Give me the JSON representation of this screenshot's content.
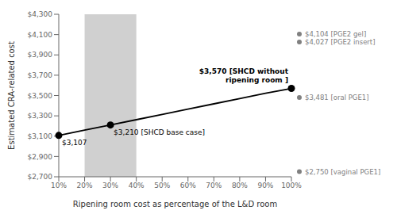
{
  "chart_data": {
    "type": "line",
    "x": [
      10,
      20,
      30,
      40,
      50,
      60,
      70,
      80,
      90,
      100
    ],
    "values": [
      3107,
      3159,
      3210,
      3262,
      3314,
      3366,
      3418,
      3470,
      3522,
      3570
    ],
    "color": "#000000",
    "xlabel": "Ripening room cost as percentage of the L&D room",
    "ylabel": "Estimated CRA-related cost",
    "xlim": [
      10,
      100
    ],
    "ylim": [
      2700,
      4300
    ],
    "xticks": [
      {
        "value": 10,
        "label": "10%"
      },
      {
        "value": 20,
        "label": "20%"
      },
      {
        "value": 30,
        "label": "30%"
      },
      {
        "value": 40,
        "label": "40%"
      },
      {
        "value": 50,
        "label": "50%"
      },
      {
        "value": 60,
        "label": "60%"
      },
      {
        "value": 70,
        "label": "70%"
      },
      {
        "value": 80,
        "label": "80%"
      },
      {
        "value": 90,
        "label": "90%"
      },
      {
        "value": 100,
        "label": "100%"
      }
    ],
    "yticks": [
      {
        "value": 2700,
        "label": "$2,700"
      },
      {
        "value": 2900,
        "label": "$2,900"
      },
      {
        "value": 3100,
        "label": "$3,100"
      },
      {
        "value": 3300,
        "label": "$3,300"
      },
      {
        "value": 3500,
        "label": "$3,500"
      },
      {
        "value": 3700,
        "label": "$3,700"
      },
      {
        "value": 3900,
        "label": "$3,900"
      },
      {
        "value": 4100,
        "label": "$4,100"
      },
      {
        "value": 4300,
        "label": "$4,300"
      }
    ],
    "grid": false,
    "shaded_range": {
      "x": [
        20,
        40
      ],
      "color": "#c8c8c8"
    },
    "key_points": [
      {
        "x": 10,
        "y": 3107
      },
      {
        "x": 30,
        "y": 3210
      },
      {
        "x": 100,
        "y": 3570
      }
    ],
    "annotations": [
      {
        "x": 10,
        "y": 3107,
        "text": "$3,107"
      },
      {
        "x": 30,
        "y": 3210,
        "text": "$3,210 [SHCD base case]"
      },
      {
        "x": 100,
        "y": 3570,
        "text": "$3,570 [SHCD without\nripening room ]"
      }
    ],
    "ref_dots": {
      "color": "#808080",
      "points": [
        {
          "value": 4104,
          "label": "$4,104 [PGE2 gel]"
        },
        {
          "value": 4027,
          "label": "$4,027 [PGE2 insert]"
        },
        {
          "value": 3481,
          "label": "$3,481 [oral PGE1]"
        },
        {
          "value": 2750,
          "label": "$2,750 [vaginal PGE1]"
        }
      ]
    }
  }
}
